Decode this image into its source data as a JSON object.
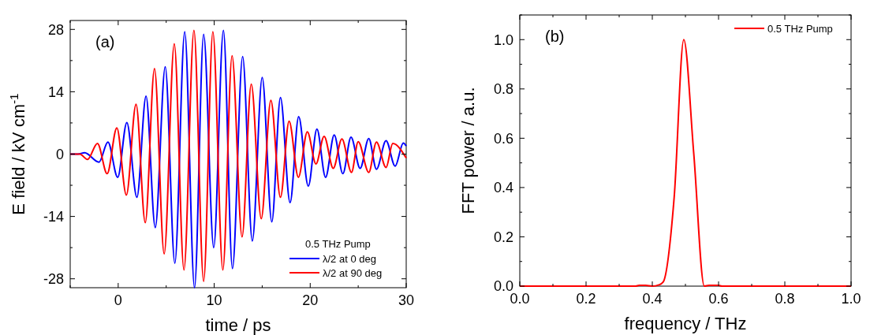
{
  "chart_data": [
    {
      "type": "line",
      "xlabel": "time / ps",
      "ylabel": "E field / kV cm$^{-1}$",
      "annotations": [
        "(a)"
      ],
      "legend_title": "0.5 THz Pump",
      "legend": "bottom right",
      "xlim": [
        -5,
        30
      ],
      "ylim": [
        -30,
        30
      ],
      "xticks": [
        {
          "value": -5,
          "label": null
        },
        0,
        {
          "value": 5,
          "label": null
        },
        10,
        {
          "value": 15,
          "label": null
        },
        20,
        {
          "value": 25,
          "label": null
        },
        30
      ],
      "yticks": [
        -28,
        {
          "value": -21,
          "label": null
        },
        -14,
        {
          "value": -7,
          "label": null
        },
        0,
        {
          "value": 7,
          "label": null
        },
        14,
        {
          "value": 21,
          "label": null
        },
        28
      ],
      "series": [
        {
          "name": "λ/2 at 0 deg",
          "color": "#0000ff",
          "x": [
            -5,
            -4.2,
            -3.5,
            -2.0,
            -1.07,
            -0.05,
            0.9,
            1.95,
            2.9,
            3.86,
            4.9,
            5.9,
            6.93,
            7.95,
            8.9,
            9.95,
            10.96,
            11.9,
            12.96,
            13.97,
            15.0,
            16.0,
            16.9,
            17.9,
            18.8,
            19.8,
            20.7,
            21.6,
            22.5,
            23.4,
            24.25,
            25.2,
            26.1,
            26.9,
            27.9,
            28.85,
            29.7,
            30
          ],
          "values": [
            0,
            0,
            0.3,
            -1.8,
            2.7,
            -5.2,
            7.1,
            -9.7,
            13,
            -16.5,
            19.6,
            -24.5,
            27.5,
            -30,
            26.9,
            -21,
            27.8,
            -25.7,
            21.9,
            -19.5,
            17.2,
            -15.2,
            12.7,
            -10.9,
            8.4,
            -7.2,
            5.6,
            -5.2,
            4.3,
            -4.4,
            3.8,
            -3.2,
            3.5,
            -3.4,
            3.0,
            -2.7,
            2.5,
            1.8
          ]
        },
        {
          "name": "λ/2 at 90 deg",
          "color": "#ff0000",
          "x": [
            -5,
            -4,
            -3.2,
            -2.16,
            -1.15,
            -0.14,
            0.85,
            1.86,
            2.82,
            3.78,
            4.79,
            5.84,
            6.85,
            7.89,
            8.9,
            9.86,
            10.9,
            11.86,
            12.9,
            13.86,
            14.9,
            15.9,
            16.9,
            17.8,
            18.77,
            19.7,
            20.6,
            21.45,
            22.4,
            23.3,
            24.3,
            25.0,
            26.1,
            26.9,
            27.9,
            28.6,
            30
          ],
          "values": [
            0,
            0,
            -1.2,
            2.4,
            -4.4,
            5.9,
            -9.2,
            11.2,
            -15.4,
            19.2,
            -22.4,
            24.8,
            -26,
            27.8,
            -28.6,
            27.5,
            -26,
            22.1,
            -18.6,
            15.7,
            -14.5,
            12.1,
            -9.7,
            7.4,
            -5.2,
            5.0,
            -2.2,
            4.0,
            -3.2,
            3.4,
            -4.1,
            2.8,
            -4.1,
            2.7,
            -3.0,
            2.4,
            -0.9
          ]
        }
      ]
    },
    {
      "type": "line",
      "xlabel": "frequency / THz",
      "ylabel": "FFT power / a.u.",
      "annotations": [
        "(b)"
      ],
      "legend": "top right",
      "xlim": [
        0,
        1
      ],
      "ylim": [
        0,
        1.1
      ],
      "xticks": [
        {
          "value": 0,
          "label": "0.0"
        },
        {
          "value": 0.1,
          "label": null
        },
        {
          "value": 0.2,
          "label": "0.2"
        },
        {
          "value": 0.3,
          "label": null
        },
        {
          "value": 0.4,
          "label": "0.4"
        },
        {
          "value": 0.5,
          "label": null
        },
        {
          "value": 0.6,
          "label": "0.6"
        },
        {
          "value": 0.7,
          "label": null
        },
        {
          "value": 0.8,
          "label": "0.8"
        },
        {
          "value": 0.9,
          "label": null
        },
        {
          "value": 1.0,
          "label": "1.0"
        }
      ],
      "yticks": [
        {
          "value": 0,
          "label": "0.0"
        },
        {
          "value": 0.1,
          "label": null
        },
        {
          "value": 0.2,
          "label": "0.2"
        },
        {
          "value": 0.3,
          "label": null
        },
        {
          "value": 0.4,
          "label": "0.4"
        },
        {
          "value": 0.5,
          "label": null
        },
        {
          "value": 0.6,
          "label": "0.6"
        },
        {
          "value": 0.7,
          "label": null
        },
        {
          "value": 0.8,
          "label": "0.8"
        },
        {
          "value": 0.9,
          "label": null
        },
        {
          "value": 1.0,
          "label": "1.0"
        },
        {
          "value": 1.1,
          "label": null
        }
      ],
      "series": [
        {
          "name": "0.5 THz Pump",
          "color": "#ff0000",
          "x": [
            0,
            0.35,
            0.36,
            0.38,
            0.4,
            0.42,
            0.433,
            0.466,
            0.495,
            0.525,
            0.557,
            0.571,
            0.6,
            0.61,
            1.0
          ],
          "values": [
            0,
            0,
            0.003,
            0.003,
            0,
            0.005,
            0.017,
            0.36,
            1.0,
            0.54,
            0,
            0.003,
            0.003,
            0,
            0
          ]
        }
      ]
    }
  ]
}
